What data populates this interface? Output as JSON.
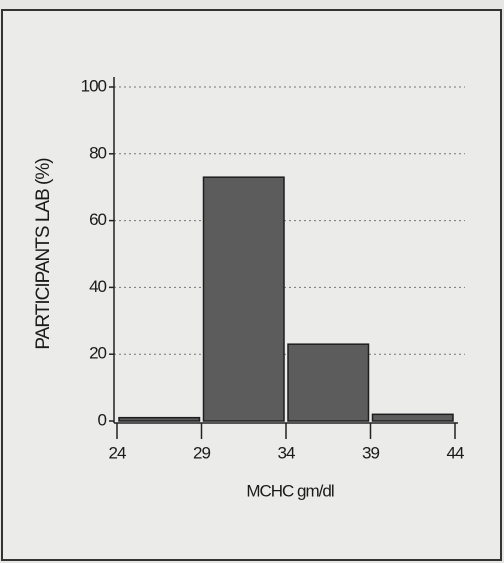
{
  "chart_data": {
    "type": "histogram",
    "bins": [
      24,
      29,
      34,
      39,
      44
    ],
    "values": [
      1,
      73,
      23,
      2
    ],
    "color": "#5c5c5c",
    "xlabel": "MCHC gm/dl",
    "ylabel": "PARTICIPANTS LAB (%)",
    "xlim": [
      24,
      44
    ],
    "xticks": [
      24,
      29,
      34,
      39,
      44
    ],
    "ylim": [
      0,
      100
    ],
    "yticks": [
      0,
      20,
      40,
      60,
      80,
      100
    ],
    "grid": true
  }
}
